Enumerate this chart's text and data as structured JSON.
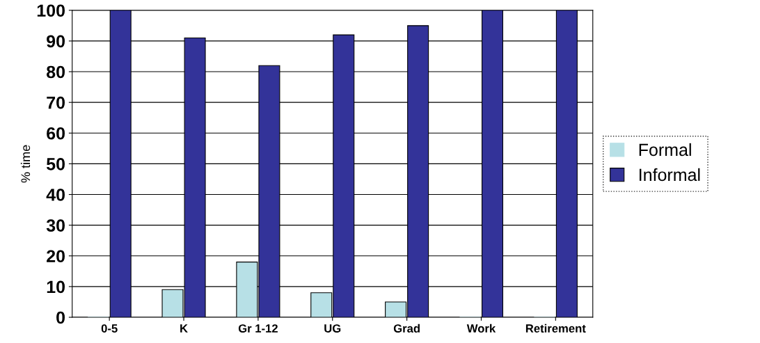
{
  "chart_data": {
    "type": "bar",
    "ylabel": "% time",
    "categories": [
      "0-5",
      "K",
      "Gr 1-12",
      "UG",
      "Grad",
      "Work",
      "Retirement"
    ],
    "series": [
      {
        "name": "Formal",
        "color": "#b7e0e6",
        "values": [
          0,
          9,
          18,
          8,
          5,
          0,
          0
        ]
      },
      {
        "name": "Informal",
        "color": "#333399",
        "values": [
          100,
          91,
          82,
          92,
          95,
          100,
          100
        ]
      }
    ],
    "ylim": [
      0,
      100
    ],
    "yticks": [
      0,
      10,
      20,
      30,
      40,
      50,
      60,
      70,
      80,
      90,
      100
    ],
    "grid": "y",
    "legend": "right"
  }
}
